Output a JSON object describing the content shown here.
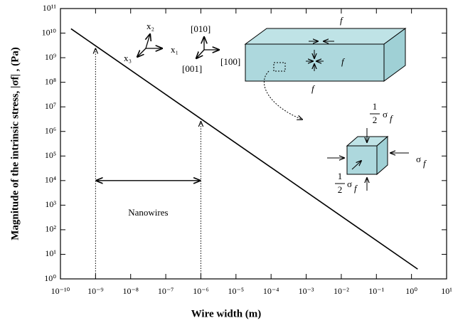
{
  "chart_data": {
    "type": "line",
    "x_label": "Wire width (m)",
    "y_label": "Magnitude of the intrinsic stress,  |σf| , (Pa)",
    "log_x": true,
    "log_y": true,
    "x": [
      2e-10,
      1.5
    ],
    "values": [
      15000000000.0,
      2.5
    ],
    "color": "#000000",
    "xlim": [
      1e-10,
      10
    ],
    "ylim": [
      1,
      100000000000.0
    ],
    "xticks": [
      {
        "value": 1e-10,
        "label": "10⁻¹⁰"
      },
      {
        "value": 1e-09,
        "label": "10⁻⁹"
      },
      {
        "value": 1e-08,
        "label": "10⁻⁸"
      },
      {
        "value": 1e-07,
        "label": "10⁻⁷"
      },
      {
        "value": 1e-06,
        "label": "10⁻⁶"
      },
      {
        "value": 1e-05,
        "label": "10⁻⁵"
      },
      {
        "value": 0.0001,
        "label": "10⁻⁴"
      },
      {
        "value": 0.001,
        "label": "10⁻³"
      },
      {
        "value": 0.01,
        "label": "10⁻²"
      },
      {
        "value": 0.1,
        "label": "10⁻¹"
      },
      {
        "value": 1,
        "label": "10⁰"
      },
      {
        "value": 10,
        "label": "10¹"
      }
    ],
    "yticks": [
      {
        "value": 1,
        "label": "10⁰"
      },
      {
        "value": 10,
        "label": "10¹"
      },
      {
        "value": 100,
        "label": "10²"
      },
      {
        "value": 1000.0,
        "label": "10³"
      },
      {
        "value": 10000.0,
        "label": "10⁴"
      },
      {
        "value": 100000.0,
        "label": "10⁵"
      },
      {
        "value": 1000000.0,
        "label": "10⁶"
      },
      {
        "value": 10000000.0,
        "label": "10⁷"
      },
      {
        "value": 100000000.0,
        "label": "10⁸"
      },
      {
        "value": 1000000000.0,
        "label": "10⁹"
      },
      {
        "value": 10000000000.0,
        "label": "10¹⁰"
      },
      {
        "value": 100000000000.0,
        "label": "10¹¹"
      }
    ],
    "guides": [
      1e-09,
      1e-06
    ],
    "range_arrow": {
      "label": "Nanowires",
      "y": 10000.0
    },
    "diagram": {
      "axes": [
        "x₁",
        "x₂",
        "x₃"
      ],
      "directions": [
        "[010]",
        "[100]",
        "[001]"
      ],
      "force": "f",
      "half": [
        "1",
        "2"
      ],
      "stress": "σ",
      "stress_sub": "f"
    }
  }
}
